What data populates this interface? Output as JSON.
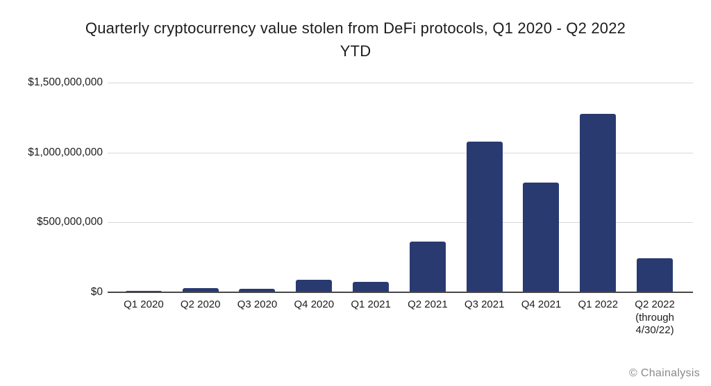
{
  "page": {
    "background": "#ffffff"
  },
  "chart_data": {
    "type": "bar",
    "title": "Quarterly cryptocurrency value stolen from DeFi protocols, Q1 2020 - Q2 2022 YTD",
    "title_lines": "Quarterly cryptocurrency value stolen from DeFi protocols, Q1 2020 - Q2 2022\nYTD",
    "categories": [
      "Q1 2020",
      "Q2 2020",
      "Q3 2020",
      "Q4 2020",
      "Q1 2021",
      "Q2 2021",
      "Q3 2021",
      "Q4 2021",
      "Q1 2022",
      "Q2 2022\n(through\n4/30/22)"
    ],
    "values": [
      10000000,
      28000000,
      23000000,
      90000000,
      73000000,
      365000000,
      1080000000,
      785000000,
      1275000000,
      245000000
    ],
    "xlabel": "",
    "ylabel": "",
    "ylim": [
      0,
      1500000000
    ],
    "y_ticks": [
      {
        "value": 1500000000,
        "label": "$1,500,000,000"
      },
      {
        "value": 1000000000,
        "label": "$1,000,000,000"
      },
      {
        "value": 500000000,
        "label": "$500,000,000"
      },
      {
        "value": 0,
        "label": "$0"
      }
    ],
    "grid": true,
    "legend_position": "none",
    "bar_color": "#293A70",
    "gridline_color": "#d8d8d8",
    "axis_line_color": "#474747",
    "text_color": "#1c1c1c"
  },
  "footer": {
    "credit": "© Chainalysis"
  }
}
